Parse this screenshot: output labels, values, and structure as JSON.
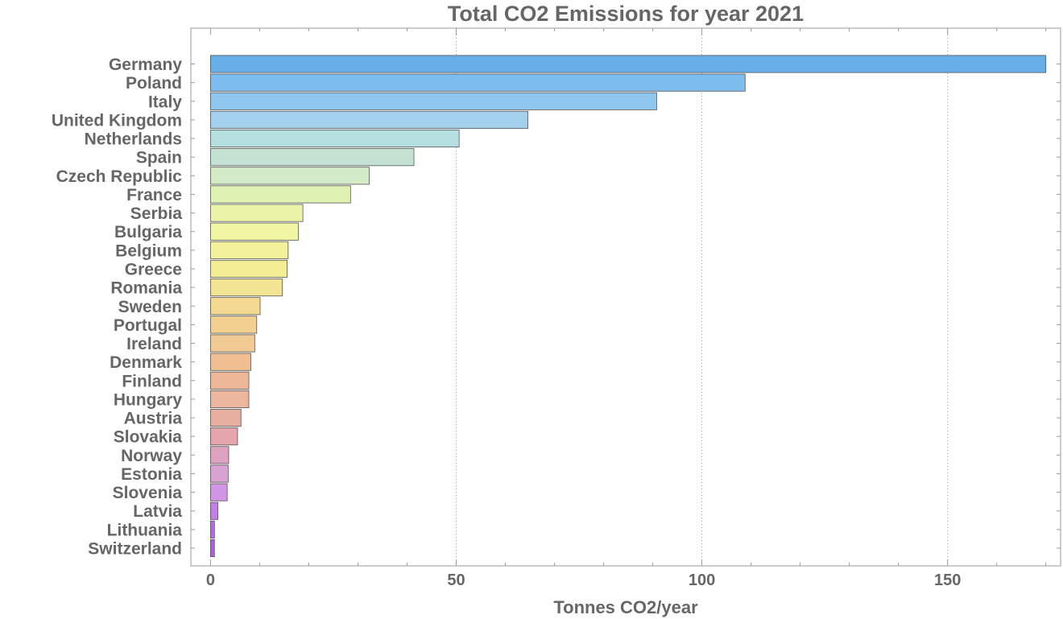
{
  "chart_data": {
    "type": "bar",
    "orientation": "horizontal",
    "title": "Total CO2 Emissions for year 2021",
    "xlabel": "Tonnes CO2/year",
    "ylabel": "",
    "xlim": [
      -4,
      173
    ],
    "xticks": [
      0,
      50,
      100,
      150
    ],
    "grid": "vertical-dotted-at-major-ticks",
    "categories": [
      "Germany",
      "Poland",
      "Italy",
      "United Kingdom",
      "Netherlands",
      "Spain",
      "Czech Republic",
      "France",
      "Serbia",
      "Bulgaria",
      "Belgium",
      "Greece",
      "Romania",
      "Sweden",
      "Portugal",
      "Ireland",
      "Denmark",
      "Finland",
      "Hungary",
      "Austria",
      "Slovakia",
      "Norway",
      "Estonia",
      "Slovenia",
      "Latvia",
      "Lithuania",
      "Switzerland"
    ],
    "values": [
      170,
      108.8,
      90.8,
      64.6,
      50.6,
      41.4,
      32.3,
      28.5,
      18.8,
      17.9,
      15.8,
      15.6,
      14.6,
      10.1,
      9.4,
      9.0,
      8.2,
      7.8,
      7.8,
      6.2,
      5.5,
      3.7,
      3.6,
      3.4,
      1.5,
      0.8,
      0.8
    ],
    "colors": [
      "#66aee8",
      "#7cbcee",
      "#8dc6ef",
      "#a3d0ec",
      "#b6dfe2",
      "#c3e2d2",
      "#d4ebc8",
      "#e0f2b2",
      "#e9f4a8",
      "#eff5a0",
      "#f3f19a",
      "#f4ed96",
      "#f2e493",
      "#f2d98f",
      "#f2d08f",
      "#f2ca93",
      "#efbf91",
      "#eeb898",
      "#ebb59e",
      "#e6ae9e",
      "#e4a6ac",
      "#dca2c0",
      "#d8a2d2",
      "#d295e6",
      "#c37ee8",
      "#b56ce6",
      "#ac5fe2"
    ],
    "colors_note_accent": "#666666"
  }
}
